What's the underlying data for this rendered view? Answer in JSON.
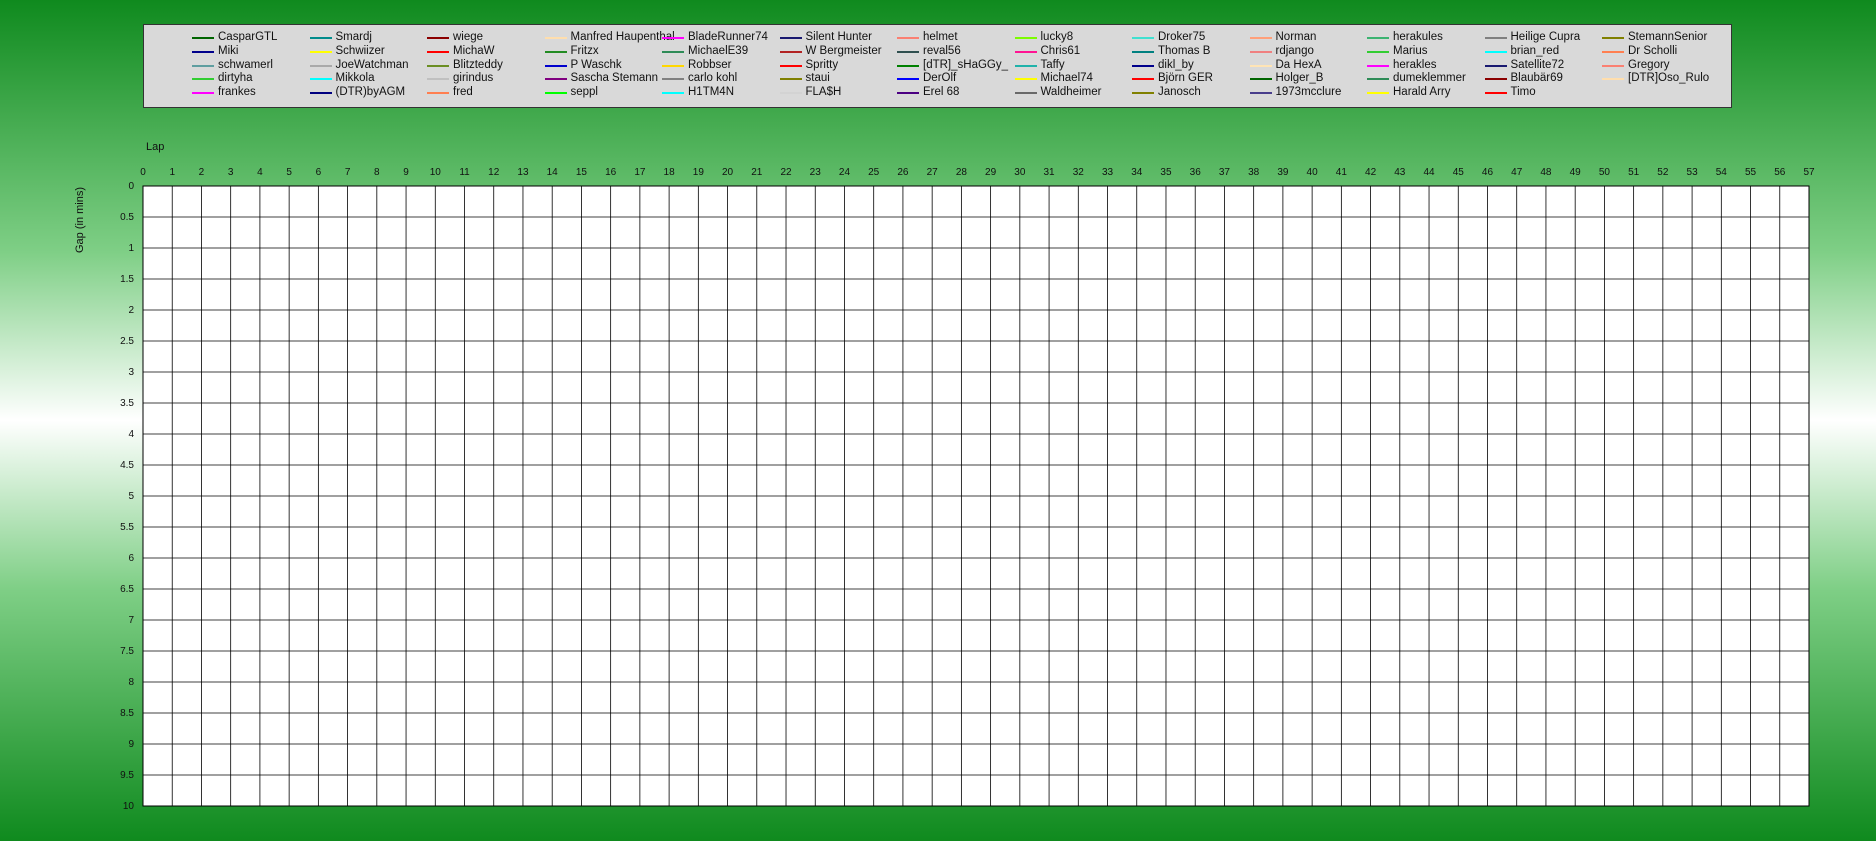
{
  "chart_data": {
    "type": "line",
    "xlabel": "Lap",
    "ylabel": "Gap (in mins)",
    "x": [
      0,
      1,
      2,
      3,
      4,
      5,
      6,
      7,
      8,
      9,
      10,
      11,
      12,
      13,
      14,
      15,
      16,
      17,
      18,
      19,
      20,
      21,
      22,
      23,
      24,
      25,
      26,
      27,
      28,
      29,
      30,
      31,
      32,
      33,
      34,
      35,
      36,
      37,
      38,
      39,
      40,
      41,
      42,
      43,
      44,
      45,
      46,
      47,
      48,
      49,
      50,
      51,
      52,
      53,
      54,
      55,
      56,
      57
    ],
    "xlim": [
      0,
      57
    ],
    "ylim": [
      0,
      10
    ],
    "y_inverted": true,
    "y_ticks": [
      "0",
      "0.5",
      "1",
      "1.5",
      "2",
      "2.5",
      "3",
      "3.5",
      "4",
      "4.5",
      "5",
      "5.5",
      "6",
      "6.5",
      "7",
      "7.5",
      "8",
      "8.5",
      "9",
      "9.5",
      "10"
    ],
    "grid": true,
    "legend_position": "top",
    "series": [
      {
        "name": "CasparGTL",
        "color": "#006400"
      },
      {
        "name": "Miki",
        "color": "#00008b"
      },
      {
        "name": "schwamerl",
        "color": "#5f9ea0"
      },
      {
        "name": "dirtyha",
        "color": "#32cd32"
      },
      {
        "name": "frankes",
        "color": "#ff00ff"
      },
      {
        "name": "Smardj",
        "color": "#008b8b"
      },
      {
        "name": "Schwiizer",
        "color": "#ffff00"
      },
      {
        "name": "JoeWatchman",
        "color": "#a9a9a9"
      },
      {
        "name": "Mikkola",
        "color": "#00ffff"
      },
      {
        "name": "(DTR)byAGM",
        "color": "#000080"
      },
      {
        "name": "wiege",
        "color": "#8b0000"
      },
      {
        "name": "MichaW",
        "color": "#ff0000"
      },
      {
        "name": "Blitzteddy",
        "color": "#6b8e23"
      },
      {
        "name": "girindus",
        "color": "#c0c0c0"
      },
      {
        "name": "fred",
        "color": "#ff7f50"
      },
      {
        "name": "Manfred Haupenthal",
        "color": "#ffdead"
      },
      {
        "name": "Fritzx",
        "color": "#228b22"
      },
      {
        "name": "P Waschk",
        "color": "#0000cd"
      },
      {
        "name": "Sascha Stemann",
        "color": "#800080"
      },
      {
        "name": "seppl",
        "color": "#00ff00"
      },
      {
        "name": "BladeRunner74",
        "color": "#ff00ff"
      },
      {
        "name": "MichaelE39",
        "color": "#2e8b57"
      },
      {
        "name": "Robbser",
        "color": "#ffd700"
      },
      {
        "name": "carlo kohl",
        "color": "#808080"
      },
      {
        "name": "H1TM4N",
        "color": "#00ffff"
      },
      {
        "name": "Silent Hunter",
        "color": "#191970"
      },
      {
        "name": "W Bergmeister",
        "color": "#b22222"
      },
      {
        "name": "Spritty",
        "color": "#ff0000"
      },
      {
        "name": "staui",
        "color": "#808000"
      },
      {
        "name": "FLA$H",
        "color": "#d3d3d3"
      },
      {
        "name": "helmet",
        "color": "#fa8072"
      },
      {
        "name": "reval56",
        "color": "#2f4f4f"
      },
      {
        "name": "[dTR]_sHaGGy_",
        "color": "#008000"
      },
      {
        "name": "DerOlf",
        "color": "#0000ff"
      },
      {
        "name": "Erel 68",
        "color": "#4b0082"
      },
      {
        "name": "lucky8",
        "color": "#7cfc00"
      },
      {
        "name": "Chris61",
        "color": "#ff1493"
      },
      {
        "name": "Taffy",
        "color": "#20b2aa"
      },
      {
        "name": "Michael74",
        "color": "#ffff00"
      },
      {
        "name": "Waldheimer",
        "color": "#696969"
      },
      {
        "name": "Droker75",
        "color": "#40e0d0"
      },
      {
        "name": "Thomas B",
        "color": "#008080"
      },
      {
        "name": "dikl_by",
        "color": "#00008b"
      },
      {
        "name": "Björn GER",
        "color": "#ff0000"
      },
      {
        "name": "Janosch",
        "color": "#808000"
      },
      {
        "name": "Norman",
        "color": "#ffa07a"
      },
      {
        "name": "rdjango",
        "color": "#f08080"
      },
      {
        "name": "Da HexA",
        "color": "#ffe4b5"
      },
      {
        "name": "Holger_B",
        "color": "#006400"
      },
      {
        "name": "1973mcclure",
        "color": "#483d8b"
      },
      {
        "name": "herakules",
        "color": "#3cb371"
      },
      {
        "name": "Marius",
        "color": "#32cd32"
      },
      {
        "name": "herakles",
        "color": "#ff00ff"
      },
      {
        "name": "dumeklemmer",
        "color": "#2e8b57"
      },
      {
        "name": "Harald Arry",
        "color": "#ffff00"
      },
      {
        "name": "Heilige Cupra",
        "color": "#808080"
      },
      {
        "name": "brian_red",
        "color": "#00ffff"
      },
      {
        "name": "Satellite72",
        "color": "#191970"
      },
      {
        "name": "Blaubär69",
        "color": "#8b0000"
      },
      {
        "name": "Timo",
        "color": "#ff0000"
      },
      {
        "name": "StemannSenior",
        "color": "#808000"
      },
      {
        "name": "Dr Scholli",
        "color": "#ff7f50"
      },
      {
        "name": "Gregory",
        "color": "#fa8072"
      },
      {
        "name": "[DTR]Oso_Rulo",
        "color": "#ffdead"
      }
    ]
  }
}
